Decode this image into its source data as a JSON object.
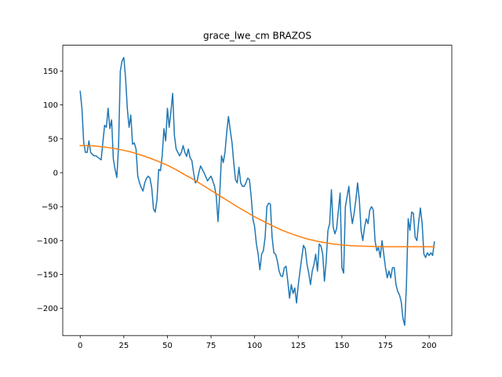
{
  "chart_data": {
    "type": "line",
    "title": "grace_lwe_cm BRAZOS",
    "xlabel": "",
    "ylabel": "",
    "xlim": [
      -10,
      213
    ],
    "ylim": [
      -240,
      188
    ],
    "x_ticks": [
      0,
      25,
      50,
      75,
      100,
      125,
      150,
      175,
      200
    ],
    "y_ticks": [
      -200,
      -150,
      -100,
      -50,
      0,
      50,
      100,
      150
    ],
    "y_tick_labels": [
      "−200",
      "−150",
      "−100",
      "−50",
      "0",
      "50",
      "100",
      "150"
    ],
    "grid": false,
    "series": [
      {
        "color": "#1f77b4",
        "points": [
          [
            0,
            120
          ],
          [
            1,
            95
          ],
          [
            2,
            45
          ],
          [
            3,
            30
          ],
          [
            4,
            30
          ],
          [
            5,
            47
          ],
          [
            6,
            30
          ],
          [
            7,
            27
          ],
          [
            8,
            25
          ],
          [
            9,
            25
          ],
          [
            10,
            23
          ],
          [
            11,
            21
          ],
          [
            12,
            19
          ],
          [
            13,
            45
          ],
          [
            14,
            70
          ],
          [
            15,
            67
          ],
          [
            16,
            95
          ],
          [
            17,
            65
          ],
          [
            18,
            78
          ],
          [
            19,
            20
          ],
          [
            20,
            5
          ],
          [
            21,
            -7
          ],
          [
            22,
            40
          ],
          [
            23,
            150
          ],
          [
            24,
            165
          ],
          [
            25,
            170
          ],
          [
            26,
            140
          ],
          [
            27,
            95
          ],
          [
            28,
            67
          ],
          [
            29,
            85
          ],
          [
            30,
            42
          ],
          [
            31,
            44
          ],
          [
            32,
            35
          ],
          [
            33,
            -5
          ],
          [
            34,
            -15
          ],
          [
            35,
            -22
          ],
          [
            36,
            -27
          ],
          [
            37,
            -15
          ],
          [
            38,
            -8
          ],
          [
            39,
            -5
          ],
          [
            40,
            -8
          ],
          [
            41,
            -22
          ],
          [
            42,
            -53
          ],
          [
            43,
            -58
          ],
          [
            44,
            -40
          ],
          [
            45,
            5
          ],
          [
            46,
            3
          ],
          [
            47,
            25
          ],
          [
            48,
            65
          ],
          [
            49,
            47
          ],
          [
            50,
            95
          ],
          [
            51,
            67
          ],
          [
            52,
            90
          ],
          [
            53,
            117
          ],
          [
            54,
            55
          ],
          [
            55,
            35
          ],
          [
            56,
            30
          ],
          [
            57,
            25
          ],
          [
            58,
            30
          ],
          [
            59,
            40
          ],
          [
            60,
            30
          ],
          [
            61,
            24
          ],
          [
            62,
            35
          ],
          [
            63,
            22
          ],
          [
            64,
            18
          ],
          [
            65,
            0
          ],
          [
            66,
            -15
          ],
          [
            67,
            -12
          ],
          [
            68,
            0
          ],
          [
            69,
            10
          ],
          [
            70,
            5
          ],
          [
            71,
            0
          ],
          [
            72,
            -6
          ],
          [
            73,
            -12
          ],
          [
            74,
            -8
          ],
          [
            75,
            -5
          ],
          [
            76,
            -12
          ],
          [
            77,
            -20
          ],
          [
            78,
            -35
          ],
          [
            79,
            -72
          ],
          [
            80,
            -30
          ],
          [
            81,
            25
          ],
          [
            82,
            15
          ],
          [
            83,
            30
          ],
          [
            84,
            60
          ],
          [
            85,
            83
          ],
          [
            86,
            63
          ],
          [
            87,
            45
          ],
          [
            88,
            15
          ],
          [
            89,
            -10
          ],
          [
            90,
            -15
          ],
          [
            91,
            8
          ],
          [
            92,
            -15
          ],
          [
            93,
            -20
          ],
          [
            94,
            -20
          ],
          [
            95,
            -15
          ],
          [
            96,
            -8
          ],
          [
            97,
            -10
          ],
          [
            98,
            -35
          ],
          [
            99,
            -68
          ],
          [
            100,
            -80
          ],
          [
            101,
            -105
          ],
          [
            102,
            -120
          ],
          [
            103,
            -143
          ],
          [
            104,
            -120
          ],
          [
            105,
            -115
          ],
          [
            106,
            -95
          ],
          [
            107,
            -50
          ],
          [
            108,
            -45
          ],
          [
            109,
            -46
          ],
          [
            110,
            -95
          ],
          [
            111,
            -118
          ],
          [
            112,
            -120
          ],
          [
            113,
            -130
          ],
          [
            114,
            -145
          ],
          [
            115,
            -152
          ],
          [
            116,
            -153
          ],
          [
            117,
            -140
          ],
          [
            118,
            -138
          ],
          [
            119,
            -160
          ],
          [
            120,
            -185
          ],
          [
            121,
            -165
          ],
          [
            122,
            -178
          ],
          [
            123,
            -170
          ],
          [
            124,
            -192
          ],
          [
            125,
            -165
          ],
          [
            126,
            -145
          ],
          [
            127,
            -125
          ],
          [
            128,
            -107
          ],
          [
            129,
            -112
          ],
          [
            130,
            -135
          ],
          [
            131,
            -148
          ],
          [
            132,
            -165
          ],
          [
            133,
            -145
          ],
          [
            134,
            -135
          ],
          [
            135,
            -120
          ],
          [
            136,
            -145
          ],
          [
            137,
            -105
          ],
          [
            138,
            -108
          ],
          [
            139,
            -120
          ],
          [
            140,
            -160
          ],
          [
            141,
            -130
          ],
          [
            142,
            -85
          ],
          [
            143,
            -75
          ],
          [
            144,
            -25
          ],
          [
            145,
            -80
          ],
          [
            146,
            -90
          ],
          [
            147,
            -82
          ],
          [
            148,
            -55
          ],
          [
            149,
            -30
          ],
          [
            150,
            -140
          ],
          [
            151,
            -148
          ],
          [
            152,
            -50
          ],
          [
            153,
            -35
          ],
          [
            154,
            -20
          ],
          [
            155,
            -55
          ],
          [
            156,
            -75
          ],
          [
            157,
            -60
          ],
          [
            158,
            -40
          ],
          [
            159,
            -15
          ],
          [
            160,
            -40
          ],
          [
            161,
            -85
          ],
          [
            162,
            -100
          ],
          [
            163,
            -80
          ],
          [
            164,
            -68
          ],
          [
            165,
            -75
          ],
          [
            166,
            -55
          ],
          [
            167,
            -50
          ],
          [
            168,
            -55
          ],
          [
            169,
            -100
          ],
          [
            170,
            -115
          ],
          [
            171,
            -110
          ],
          [
            172,
            -125
          ],
          [
            173,
            -100
          ],
          [
            174,
            -120
          ],
          [
            175,
            -140
          ],
          [
            176,
            -155
          ],
          [
            177,
            -145
          ],
          [
            178,
            -155
          ],
          [
            179,
            -140
          ],
          [
            180,
            -140
          ],
          [
            181,
            -165
          ],
          [
            182,
            -175
          ],
          [
            183,
            -180
          ],
          [
            184,
            -190
          ],
          [
            185,
            -215
          ],
          [
            186,
            -225
          ],
          [
            187,
            -165
          ],
          [
            188,
            -68
          ],
          [
            189,
            -85
          ],
          [
            190,
            -58
          ],
          [
            191,
            -60
          ],
          [
            192,
            -95
          ],
          [
            193,
            -100
          ],
          [
            194,
            -73
          ],
          [
            195,
            -52
          ],
          [
            196,
            -75
          ],
          [
            197,
            -120
          ],
          [
            198,
            -125
          ],
          [
            199,
            -118
          ],
          [
            200,
            -122
          ],
          [
            201,
            -118
          ],
          [
            202,
            -122
          ],
          [
            203,
            -102
          ]
        ]
      },
      {
        "color": "#ff7f0e",
        "points": [
          [
            0,
            40
          ],
          [
            5,
            40
          ],
          [
            10,
            39
          ],
          [
            15,
            37.5
          ],
          [
            20,
            35.5
          ],
          [
            25,
            33
          ],
          [
            30,
            30
          ],
          [
            35,
            26
          ],
          [
            40,
            21.5
          ],
          [
            45,
            16.5
          ],
          [
            50,
            11
          ],
          [
            55,
            4.5
          ],
          [
            60,
            -3
          ],
          [
            65,
            -10
          ],
          [
            70,
            -18
          ],
          [
            75,
            -26
          ],
          [
            80,
            -34
          ],
          [
            85,
            -42
          ],
          [
            90,
            -50
          ],
          [
            95,
            -57.5
          ],
          [
            100,
            -65
          ],
          [
            105,
            -71.5
          ],
          [
            110,
            -78
          ],
          [
            115,
            -84
          ],
          [
            120,
            -89
          ],
          [
            125,
            -93.5
          ],
          [
            130,
            -97.5
          ],
          [
            135,
            -100.5
          ],
          [
            140,
            -103
          ],
          [
            145,
            -105
          ],
          [
            150,
            -106.5
          ],
          [
            155,
            -107.5
          ],
          [
            160,
            -108
          ],
          [
            165,
            -108.5
          ],
          [
            170,
            -108.8
          ],
          [
            175,
            -109
          ],
          [
            180,
            -109
          ],
          [
            185,
            -109
          ],
          [
            190,
            -109
          ],
          [
            195,
            -109
          ],
          [
            200,
            -109
          ],
          [
            203,
            -109
          ]
        ]
      }
    ]
  }
}
